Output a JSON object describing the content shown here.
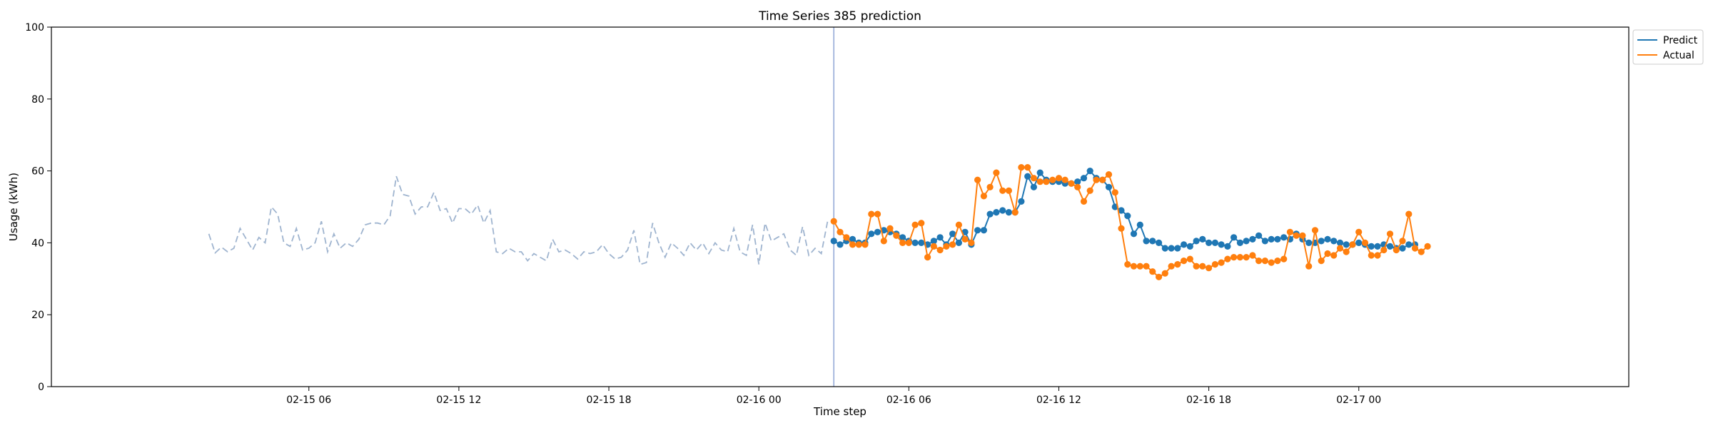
{
  "chart_data": {
    "type": "line",
    "title": "Time Series 385 prediction",
    "xlabel": "Time step",
    "ylabel": "Usage (kWh)",
    "ylim": [
      0,
      100
    ],
    "yticks": [
      0,
      20,
      40,
      60,
      80,
      100
    ],
    "xlim_hours": [
      -4.3,
      58.8
    ],
    "xticks": [
      {
        "label": "02-15 06",
        "hour": 6
      },
      {
        "label": "02-15 12",
        "hour": 12
      },
      {
        "label": "02-15 18",
        "hour": 18
      },
      {
        "label": "02-16 00",
        "hour": 24
      },
      {
        "label": "02-16 06",
        "hour": 30
      },
      {
        "label": "02-16 12",
        "hour": 36
      },
      {
        "label": "02-16 18",
        "hour": 42
      },
      {
        "label": "02-17 00",
        "hour": 48
      }
    ],
    "forecast_start_hour": 27.0,
    "step_minutes": 15,
    "history": {
      "start_hour": 2.0,
      "values": [
        42.5,
        37.2,
        38.8,
        37.5,
        38.5,
        44.0,
        41.0,
        38.0,
        41.5,
        40.0,
        50.0,
        48.0,
        40.0,
        39.0,
        44.0,
        38.0,
        38.5,
        40.0,
        46.0,
        37.5,
        42.5,
        38.5,
        40.0,
        39.0,
        41.0,
        45.0,
        45.5,
        45.5,
        45.0,
        47.5,
        58.5,
        53.5,
        53.0,
        48.0,
        50.0,
        50.0,
        54.0,
        49.0,
        49.5,
        45.5,
        49.5,
        49.5,
        48.0,
        50.5,
        45.5,
        49.0,
        37.5,
        37.0,
        38.5,
        37.5,
        37.5,
        35.0,
        37.0,
        36.0,
        35.0,
        41.0,
        37.5,
        38.0,
        37.0,
        35.5,
        37.5,
        37.0,
        37.5,
        39.5,
        37.0,
        35.5,
        36.0,
        38.0,
        43.5,
        34.0,
        34.5,
        45.5,
        40.0,
        36.0,
        40.0,
        38.5,
        36.5,
        40.0,
        38.0,
        40.0,
        37.0,
        40.0,
        38.0,
        37.5,
        44.0,
        37.5,
        36.5,
        45.0,
        34.0,
        45.5,
        40.5,
        41.5,
        42.5,
        38.0,
        36.5,
        44.5,
        36.5,
        38.5,
        37.0,
        46.0
      ]
    },
    "series": [
      {
        "name": "Predict",
        "color": "#1f77b4",
        "start_hour": 27.0,
        "values": [
          40.5,
          39.5,
          40.5,
          41.0,
          40.0,
          40.0,
          42.5,
          43.0,
          43.5,
          43.0,
          42.5,
          41.5,
          40.5,
          40.0,
          40.0,
          39.5,
          40.5,
          41.5,
          39.5,
          42.5,
          40.0,
          43.0,
          39.5,
          43.5,
          43.5,
          48.0,
          48.5,
          49.0,
          48.5,
          48.5,
          51.5,
          58.5,
          55.5,
          59.5,
          57.5,
          57.0,
          57.0,
          56.5,
          56.5,
          57.0,
          58.0,
          60.0,
          58.0,
          57.5,
          55.5,
          50.0,
          49.0,
          47.5,
          42.5,
          45.0,
          40.5,
          40.5,
          40.0,
          38.5,
          38.5,
          38.5,
          39.5,
          39.0,
          40.5,
          41.0,
          40.0,
          40.0,
          39.5,
          39.0,
          41.5,
          40.0,
          40.5,
          41.0,
          42.0,
          40.5,
          41.0,
          41.0,
          41.5,
          41.0,
          42.5,
          41.0,
          40.0,
          40.0,
          40.5,
          41.0,
          40.5,
          40.0,
          39.5,
          39.5,
          40.0,
          39.5,
          39.0,
          39.0,
          39.5,
          39.0,
          38.5,
          38.5,
          39.5,
          39.5
        ]
      },
      {
        "name": "Actual",
        "color": "#ff7f0e",
        "start_hour": 27.0,
        "values": [
          46.0,
          43.0,
          41.5,
          39.5,
          39.5,
          39.5,
          48.0,
          48.0,
          40.5,
          44.0,
          42.0,
          40.0,
          40.0,
          45.0,
          45.5,
          36.0,
          39.0,
          38.0,
          39.0,
          39.5,
          45.0,
          41.0,
          40.0,
          57.5,
          53.0,
          55.5,
          59.5,
          54.5,
          54.5,
          48.5,
          61.0,
          61.0,
          58.0,
          57.0,
          57.0,
          57.5,
          58.0,
          57.5,
          56.5,
          55.5,
          51.5,
          54.5,
          57.5,
          57.5,
          59.0,
          54.0,
          44.0,
          34.0,
          33.5,
          33.5,
          33.5,
          32.0,
          30.5,
          31.5,
          33.5,
          34.0,
          35.0,
          35.5,
          33.5,
          33.5,
          33.0,
          34.0,
          34.5,
          35.5,
          36.0,
          36.0,
          36.0,
          36.5,
          35.0,
          35.0,
          34.5,
          35.0,
          35.5,
          43.0,
          42.0,
          42.0,
          33.5,
          43.5,
          35.0,
          37.0,
          36.5,
          38.5,
          37.5,
          39.5,
          43.0,
          40.0,
          36.5,
          36.5,
          38.0,
          42.5,
          38.0,
          40.5,
          48.0,
          38.5,
          37.5,
          39.0
        ]
      }
    ],
    "history_color": "#9fb4cf",
    "forecast_line_color": "#8fa6d6",
    "legend": {
      "placement": "outside-top-right",
      "entries": [
        "Predict",
        "Actual"
      ]
    },
    "grid": false
  }
}
